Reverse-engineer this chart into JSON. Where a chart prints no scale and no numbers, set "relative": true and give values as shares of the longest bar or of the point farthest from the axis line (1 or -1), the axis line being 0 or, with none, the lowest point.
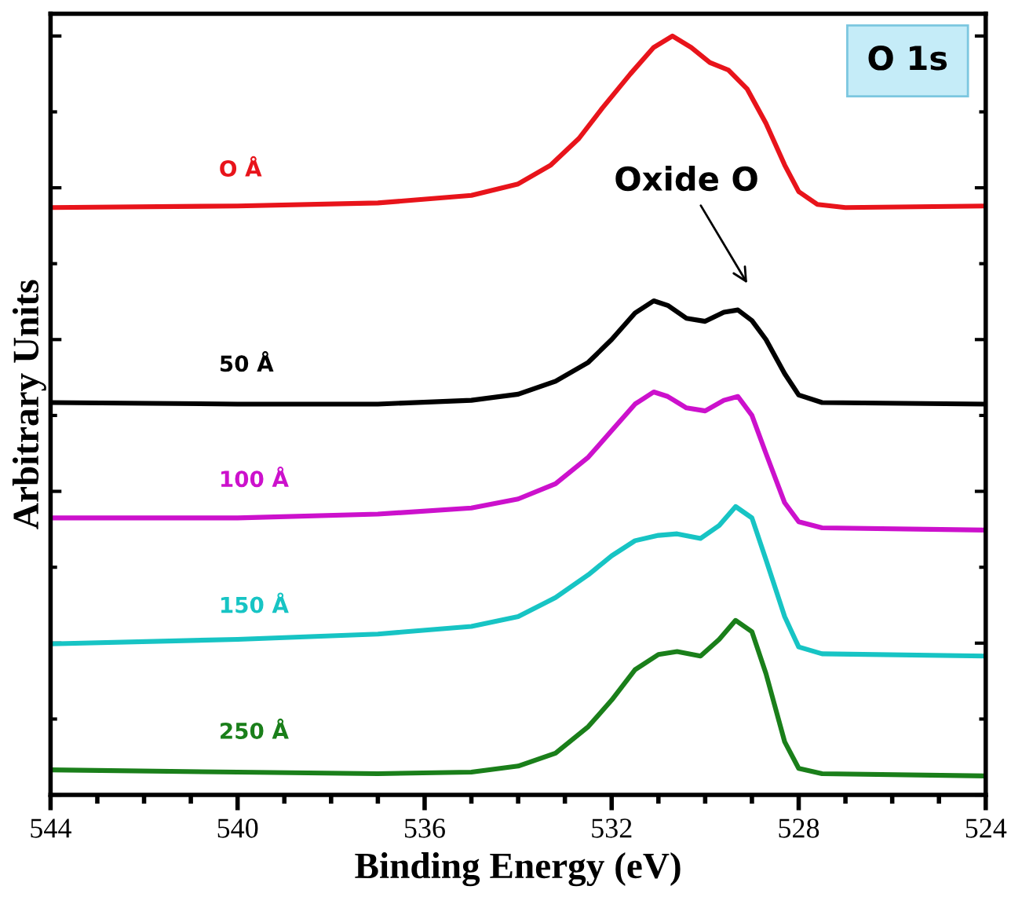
{
  "chart_data": {
    "type": "line",
    "relative": true,
    "xlabel": "Binding Energy (eV)",
    "ylabel": "Arbitrary Units",
    "xlim": [
      544,
      524
    ],
    "xticks": [
      544,
      540,
      536,
      532,
      528,
      524
    ],
    "tick_labels": "x",
    "grid": false,
    "legend": false,
    "marker": "none",
    "line_style": "solid",
    "annotations": [
      "Oxide O",
      "O 1s"
    ],
    "series": [
      {
        "name": "O Å",
        "color": "#e8141b",
        "x": [
          544,
          540,
          537,
          535,
          534,
          533.3,
          532.7,
          532.2,
          531.6,
          531.1,
          530.7,
          530.3,
          529.9,
          529.5,
          529.1,
          528.7,
          528.3,
          528,
          527.6,
          527,
          524
        ],
        "values": [
          0.774,
          0.776,
          0.78,
          0.79,
          0.805,
          0.83,
          0.865,
          0.905,
          0.95,
          0.985,
          1.0,
          0.985,
          0.965,
          0.955,
          0.93,
          0.885,
          0.83,
          0.795,
          0.778,
          0.774,
          0.776
        ]
      },
      {
        "name": "50 Å",
        "color": "#000000",
        "x": [
          544,
          540,
          537,
          535,
          534,
          533.2,
          532.5,
          532,
          531.5,
          531.1,
          530.8,
          530.4,
          530,
          529.6,
          529.3,
          529,
          528.7,
          528.3,
          528,
          527.5,
          524
        ],
        "values": [
          0.517,
          0.515,
          0.515,
          0.52,
          0.528,
          0.545,
          0.57,
          0.6,
          0.635,
          0.651,
          0.645,
          0.628,
          0.624,
          0.636,
          0.639,
          0.625,
          0.6,
          0.555,
          0.527,
          0.517,
          0.515
        ]
      },
      {
        "name": "100 Å",
        "color": "#cc11cc",
        "x": [
          544,
          540,
          537,
          535,
          534,
          533.2,
          532.5,
          532,
          531.5,
          531.1,
          530.8,
          530.4,
          530,
          529.6,
          529.3,
          529,
          528.7,
          528.3,
          528,
          527.5,
          524
        ],
        "values": [
          0.365,
          0.365,
          0.37,
          0.378,
          0.39,
          0.41,
          0.445,
          0.48,
          0.515,
          0.531,
          0.525,
          0.51,
          0.506,
          0.52,
          0.525,
          0.5,
          0.45,
          0.385,
          0.36,
          0.352,
          0.349
        ]
      },
      {
        "name": "150 Å",
        "color": "#17c4c4",
        "x": [
          544,
          540,
          537,
          535,
          534,
          533.2,
          532.5,
          532,
          531.5,
          531,
          530.6,
          530.1,
          529.7,
          529.35,
          529,
          528.7,
          528.3,
          528,
          527.5,
          524
        ],
        "values": [
          0.199,
          0.205,
          0.212,
          0.222,
          0.235,
          0.26,
          0.29,
          0.315,
          0.335,
          0.342,
          0.344,
          0.338,
          0.355,
          0.38,
          0.365,
          0.31,
          0.235,
          0.195,
          0.186,
          0.183
        ]
      },
      {
        "name": "250 Å",
        "color": "#1a7f1a",
        "x": [
          544,
          540,
          537,
          535,
          534,
          533.2,
          532.5,
          532,
          531.5,
          531,
          530.6,
          530.1,
          529.7,
          529.35,
          529,
          528.7,
          528.3,
          528,
          527.5,
          524
        ],
        "values": [
          0.033,
          0.03,
          0.028,
          0.03,
          0.038,
          0.055,
          0.09,
          0.125,
          0.165,
          0.185,
          0.189,
          0.183,
          0.205,
          0.23,
          0.215,
          0.16,
          0.07,
          0.035,
          0.028,
          0.025
        ]
      }
    ]
  }
}
